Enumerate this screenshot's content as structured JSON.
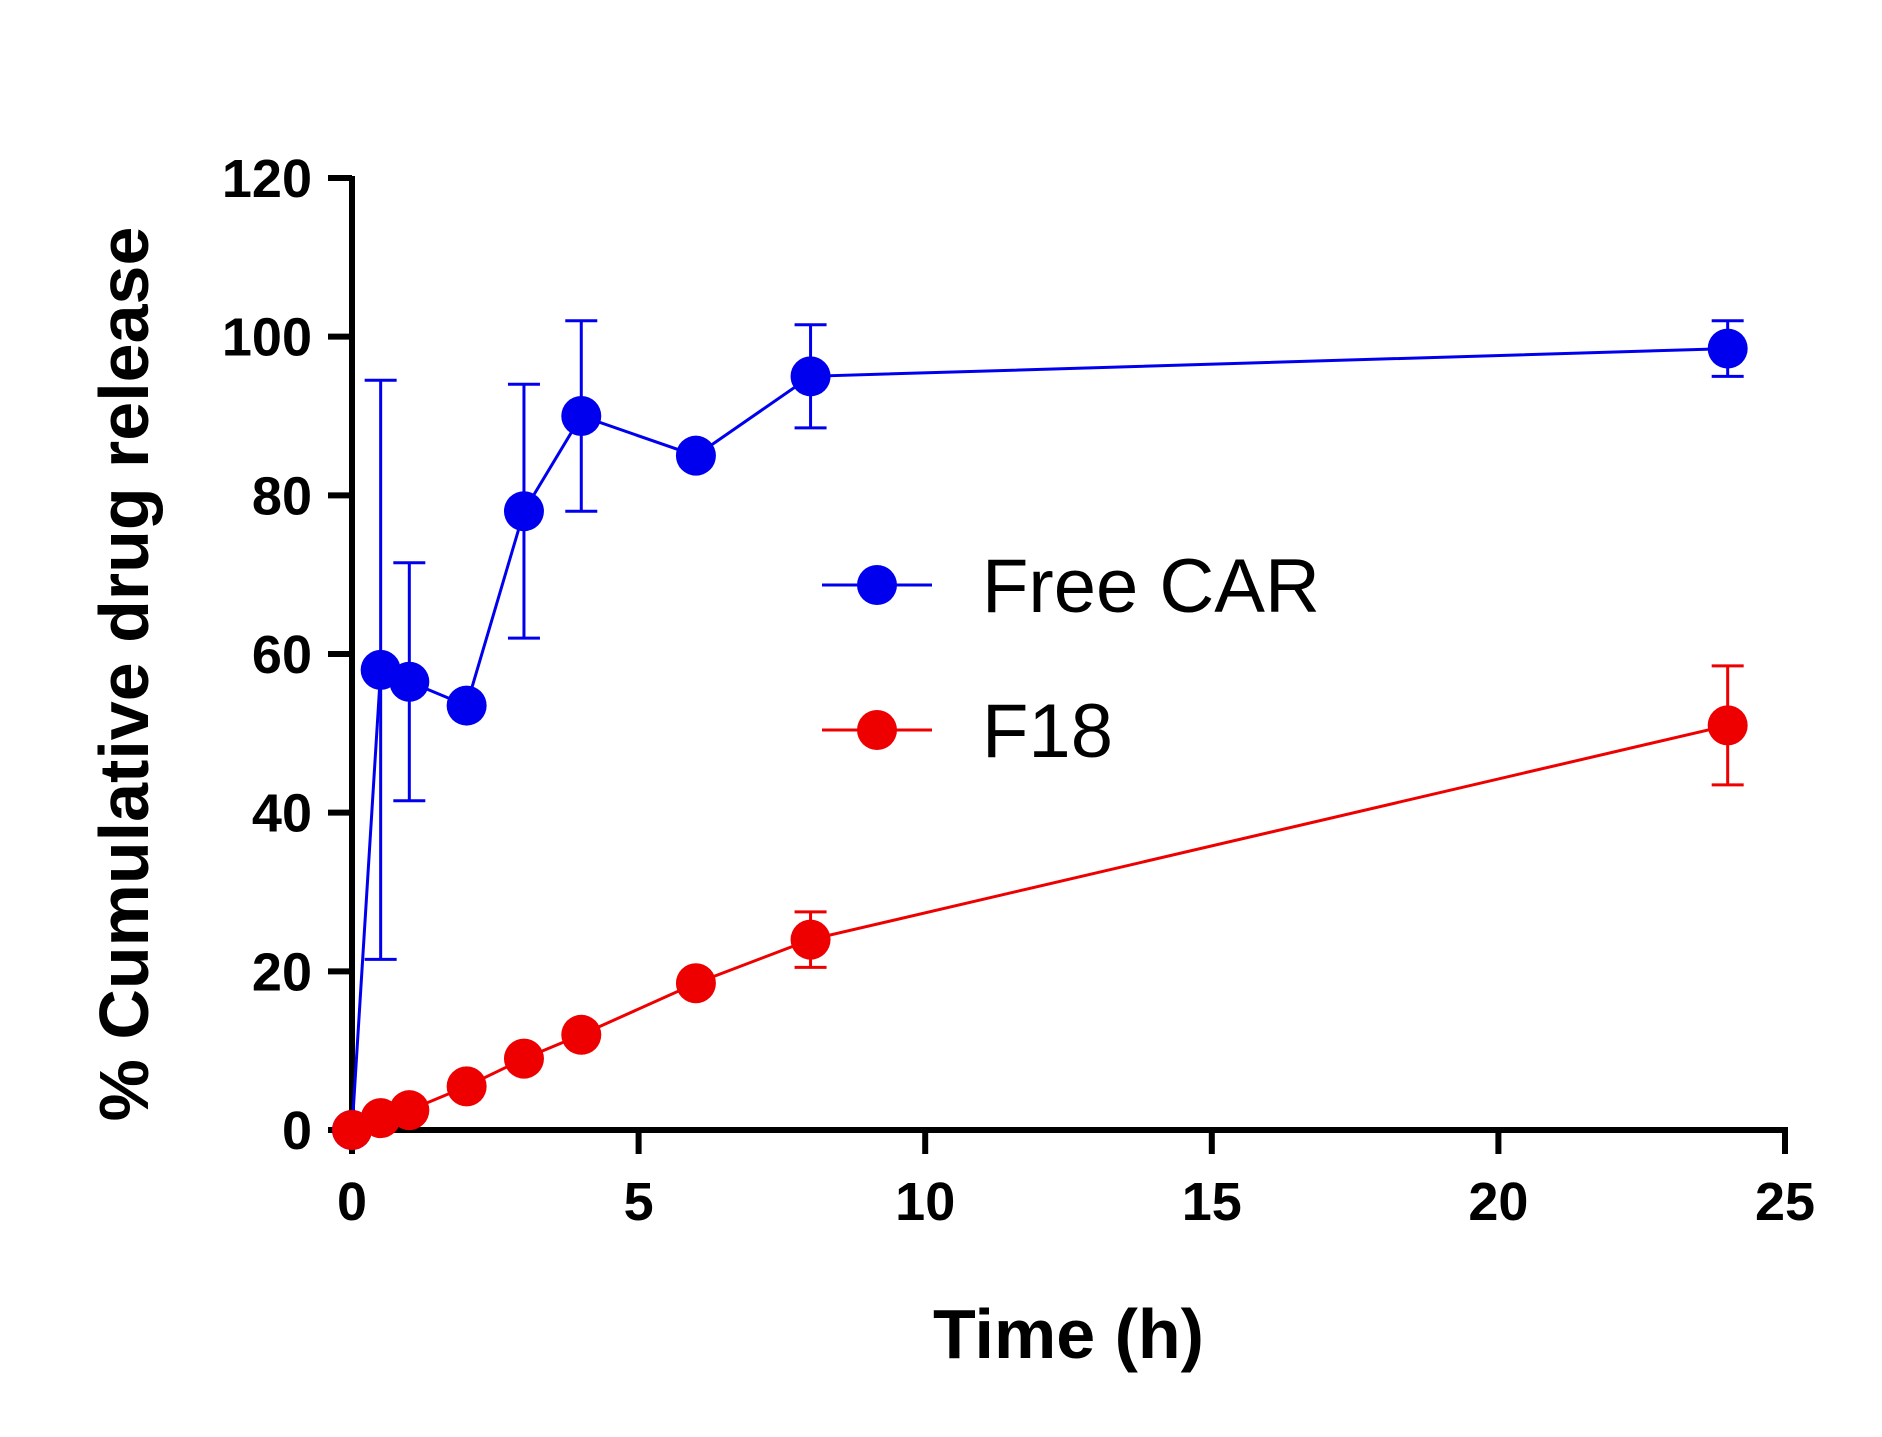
{
  "chart_data": {
    "type": "line",
    "title": "",
    "xlabel": "Time (h)",
    "ylabel": "% Cumulative drug release",
    "xlim": [
      0,
      25
    ],
    "ylim": [
      0,
      120
    ],
    "xticks": [
      0,
      5,
      10,
      15,
      20,
      25
    ],
    "yticks": [
      0,
      20,
      40,
      60,
      80,
      100,
      120
    ],
    "grid": false,
    "legend_position": "center-right",
    "series": [
      {
        "name": "Free CAR",
        "color": "#0000ee",
        "x": [
          0,
          0.5,
          1,
          2,
          3,
          4,
          6,
          8,
          24
        ],
        "y": [
          0,
          58,
          56.5,
          53.5,
          78,
          90,
          85,
          95,
          98.5
        ],
        "error": [
          0,
          36.5,
          15,
          0,
          16,
          12,
          0,
          6.5,
          3.5
        ]
      },
      {
        "name": "F18",
        "color": "#ee0000",
        "x": [
          0,
          0.5,
          1,
          2,
          3,
          4,
          6,
          8,
          24
        ],
        "y": [
          0,
          1.5,
          2.5,
          5.5,
          9,
          12,
          18.5,
          24,
          51
        ],
        "error": [
          0,
          0,
          0,
          0,
          0,
          0,
          0,
          3.5,
          7.5
        ]
      }
    ]
  }
}
